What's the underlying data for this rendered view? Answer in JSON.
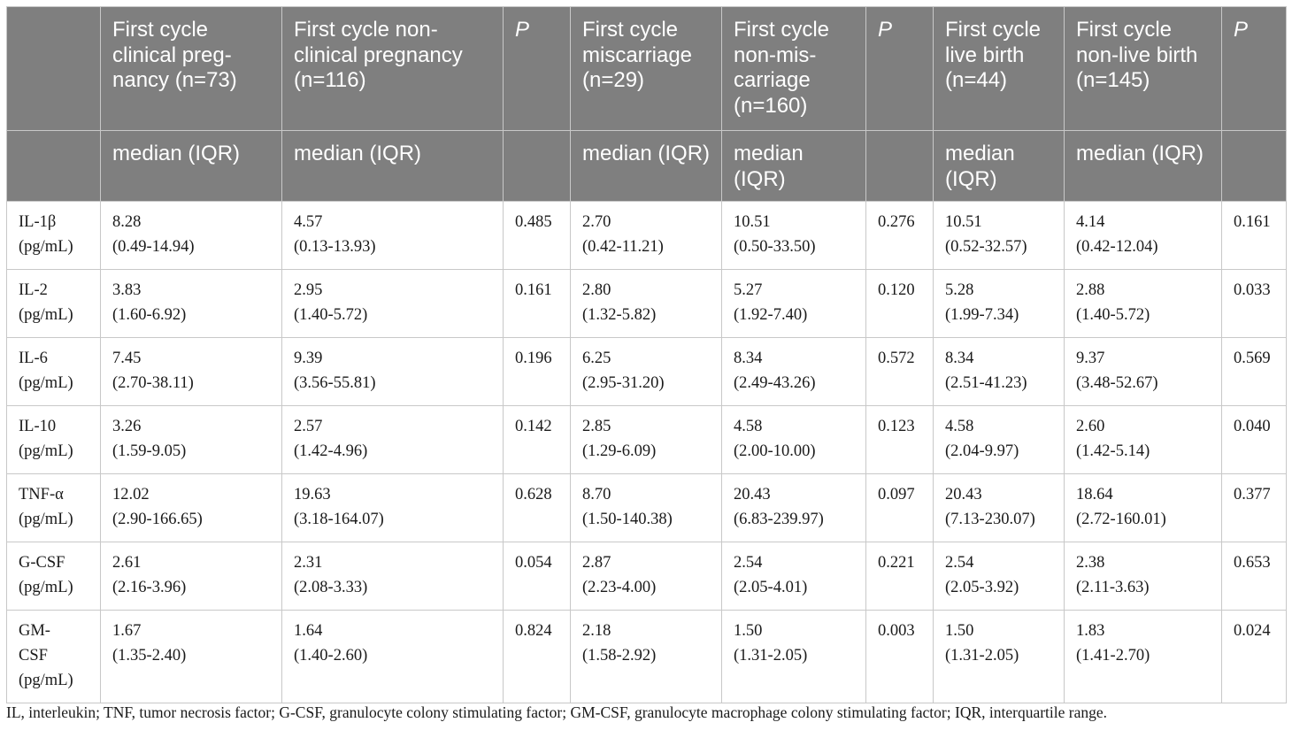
{
  "header": {
    "row1": [
      "",
      "First cycle clinical preg-nancy (n=73)",
      "First cycle non-clinical pregnancy (n=116)",
      "P",
      "First cycle miscarriage (n=29)",
      "First cycle non-mis-carriage (n=160)",
      "P",
      "First cycle live birth (n=44)",
      "First cycle non-live birth (n=145)",
      "P"
    ],
    "row2": [
      "",
      "median (IQR)",
      "median (IQR)",
      "",
      "median (IQR)",
      "median (IQR)",
      "",
      "median (IQR)",
      "median (IQR)",
      ""
    ]
  },
  "rows": [
    {
      "label": [
        "IL-1β",
        "(pg/mL)"
      ],
      "cells": [
        [
          "8.28",
          "(0.49-14.94)"
        ],
        [
          "4.57",
          "(0.13-13.93)"
        ],
        [
          "0.485"
        ],
        [
          "2.70",
          "(0.42-11.21)"
        ],
        [
          "10.51",
          "(0.50-33.50)"
        ],
        [
          "0.276"
        ],
        [
          "10.51",
          "(0.52-32.57)"
        ],
        [
          "4.14",
          "(0.42-12.04)"
        ],
        [
          "0.161"
        ]
      ]
    },
    {
      "label": [
        "IL-2",
        "(pg/mL)"
      ],
      "cells": [
        [
          "3.83",
          "(1.60-6.92)"
        ],
        [
          "2.95",
          "(1.40-5.72)"
        ],
        [
          "0.161"
        ],
        [
          "2.80",
          "(1.32-5.82)"
        ],
        [
          "5.27",
          "(1.92-7.40)"
        ],
        [
          "0.120"
        ],
        [
          "5.28",
          "(1.99-7.34)"
        ],
        [
          "2.88",
          "(1.40-5.72)"
        ],
        [
          "0.033"
        ]
      ]
    },
    {
      "label": [
        "IL-6",
        "(pg/mL)"
      ],
      "cells": [
        [
          "7.45",
          "(2.70-38.11)"
        ],
        [
          "9.39",
          "(3.56-55.81)"
        ],
        [
          "0.196"
        ],
        [
          "6.25",
          "(2.95-31.20)"
        ],
        [
          "8.34",
          "(2.49-43.26)"
        ],
        [
          "0.572"
        ],
        [
          "8.34",
          "(2.51-41.23)"
        ],
        [
          "9.37",
          "(3.48-52.67)"
        ],
        [
          "0.569"
        ]
      ]
    },
    {
      "label": [
        "IL-10",
        "(pg/mL)"
      ],
      "cells": [
        [
          "3.26",
          "(1.59-9.05)"
        ],
        [
          "2.57",
          "(1.42-4.96)"
        ],
        [
          "0.142"
        ],
        [
          "2.85",
          "(1.29-6.09)"
        ],
        [
          "4.58",
          "(2.00-10.00)"
        ],
        [
          "0.123"
        ],
        [
          "4.58",
          "(2.04-9.97)"
        ],
        [
          "2.60",
          "(1.42-5.14)"
        ],
        [
          "0.040"
        ]
      ]
    },
    {
      "label": [
        "TNF-α",
        "(pg/mL)"
      ],
      "cells": [
        [
          "12.02",
          "(2.90-166.65)"
        ],
        [
          "19.63",
          "(3.18-164.07)"
        ],
        [
          "0.628"
        ],
        [
          "8.70",
          "(1.50-140.38)"
        ],
        [
          "20.43",
          "(6.83-239.97)"
        ],
        [
          "0.097"
        ],
        [
          "20.43",
          "(7.13-230.07)"
        ],
        [
          "18.64",
          "(2.72-160.01)"
        ],
        [
          "0.377"
        ]
      ]
    },
    {
      "label": [
        "G-CSF",
        "(pg/mL)"
      ],
      "cells": [
        [
          "2.61",
          "(2.16-3.96)"
        ],
        [
          "2.31",
          "(2.08-3.33)"
        ],
        [
          "0.054"
        ],
        [
          "2.87",
          "(2.23-4.00)"
        ],
        [
          "2.54",
          "(2.05-4.01)"
        ],
        [
          "0.221"
        ],
        [
          "2.54",
          "(2.05-3.92)"
        ],
        [
          "2.38",
          "(2.11-3.63)"
        ],
        [
          "0.653"
        ]
      ]
    },
    {
      "label": [
        "GM-",
        "CSF",
        "(pg/mL)"
      ],
      "cells": [
        [
          "1.67",
          "(1.35-2.40)"
        ],
        [
          "1.64",
          "(1.40-2.60)"
        ],
        [
          "0.824"
        ],
        [
          "2.18",
          "(1.58-2.92)"
        ],
        [
          "1.50",
          "(1.31-2.05)"
        ],
        [
          "0.003"
        ],
        [
          "1.50",
          "(1.31-2.05)"
        ],
        [
          "1.83",
          "(1.41-2.70)"
        ],
        [
          "0.024"
        ]
      ]
    }
  ],
  "footnote": "IL, interleukin; TNF, tumor necrosis factor; G-CSF, granulocyte colony stimulating factor; GM-CSF, granulocyte macrophage colony stimulating factor; IQR, interquartile range."
}
